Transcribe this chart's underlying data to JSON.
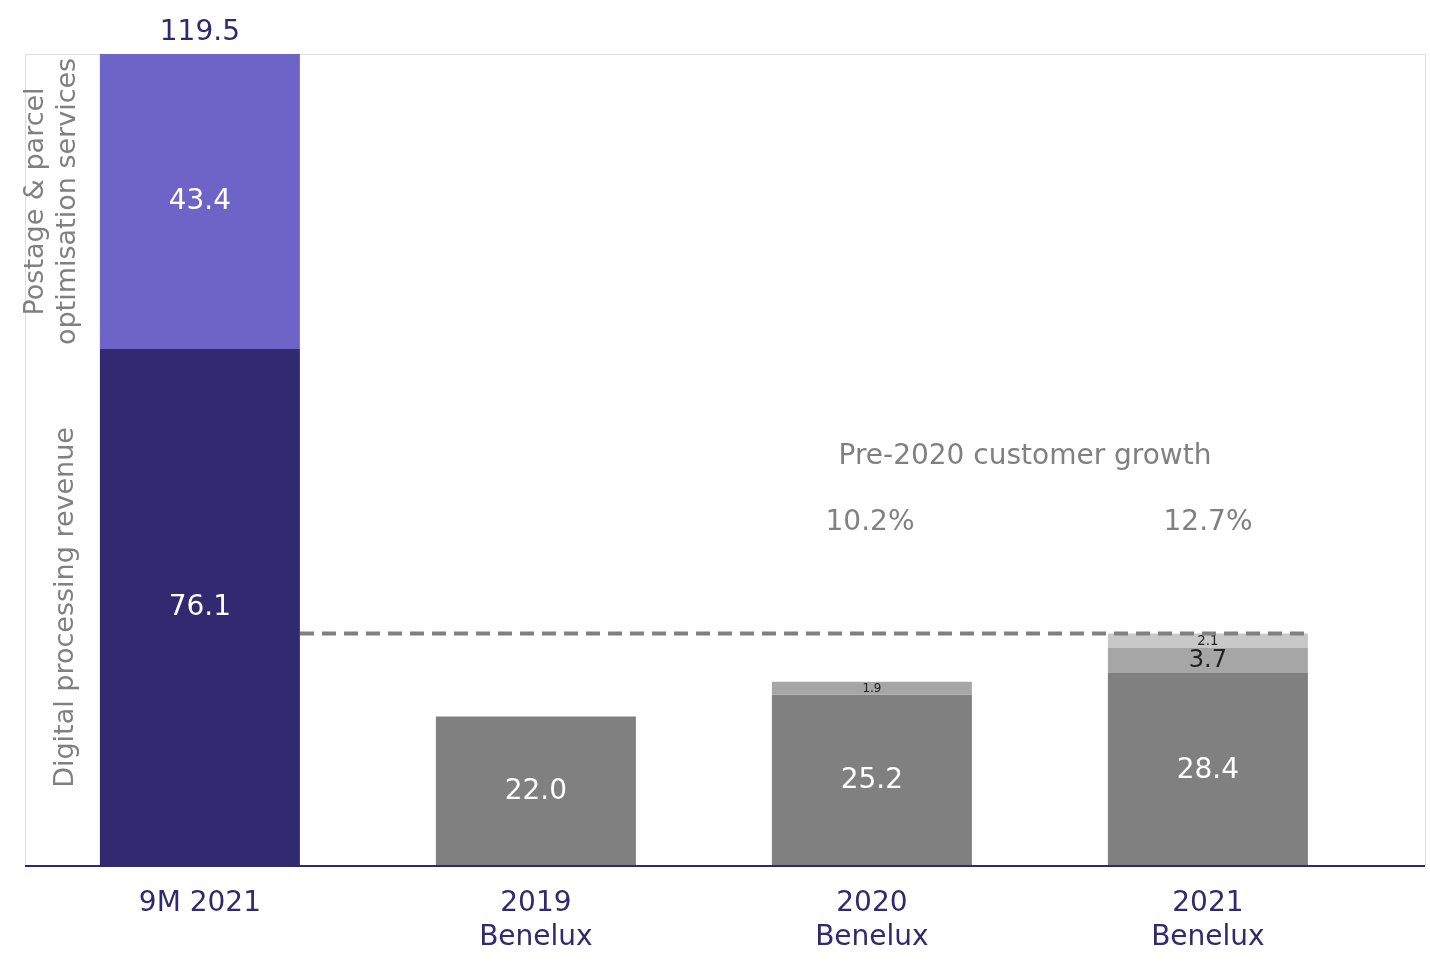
{
  "chart_data": {
    "type": "bar",
    "stacked": true,
    "categories": [
      "9M 2021",
      "2019\nBenelux",
      "2020\nBenelux",
      "2021\nBenelux"
    ],
    "series": [
      {
        "name": "Digital processing revenue",
        "colors": [
          "#312a70",
          "#808080",
          "#808080",
          "#808080"
        ],
        "values": [
          76.1,
          22.0,
          25.2,
          28.4
        ],
        "value_labels": [
          "76.1",
          "22.0",
          "25.2",
          "28.4"
        ]
      },
      {
        "name": "Postage & parcel\noptimisation services",
        "color": "#6e64c8",
        "values": [
          43.4,
          null,
          null,
          null
        ],
        "value_labels": [
          "43.4",
          null,
          null,
          null
        ]
      },
      {
        "color": "#a6a6a6",
        "values": [
          null,
          null,
          1.9,
          3.7
        ],
        "value_labels": [
          null,
          null,
          "1.9",
          "3.7"
        ]
      },
      {
        "color": "#c8c8c8",
        "values": [
          null,
          null,
          null,
          2.1
        ],
        "value_labels": [
          null,
          null,
          null,
          "2.1"
        ]
      }
    ],
    "totals": [
      "119.5",
      null,
      null,
      null
    ],
    "ref_lines": [
      {
        "axis": "y",
        "value": 34.2,
        "color": "#808080",
        "line_style": "dashed"
      }
    ],
    "annotations": [
      "Pre-2020 customer growth",
      "10.2%",
      "12.7%"
    ],
    "grid": false,
    "tick_labels": "x"
  }
}
